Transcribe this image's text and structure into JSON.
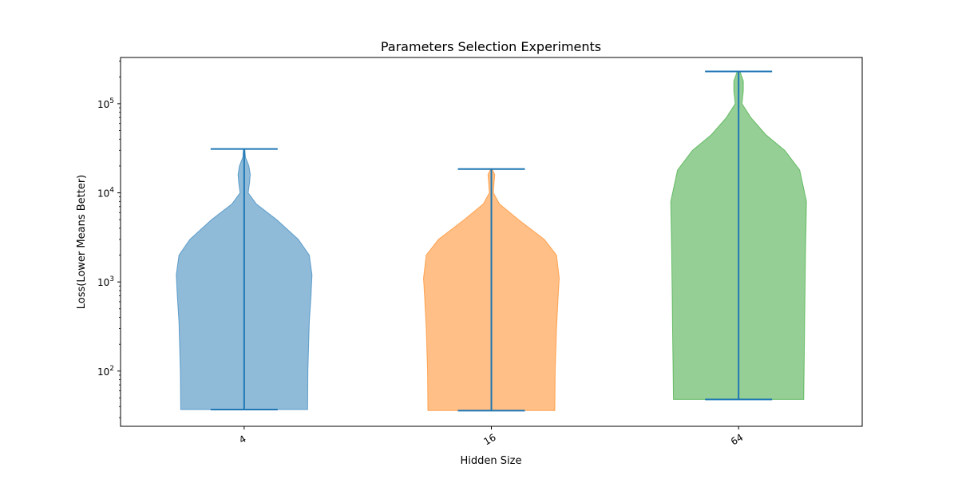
{
  "chart_data": {
    "type": "violin",
    "title": "Parameters Selection Experiments",
    "xlabel": "Hidden Size",
    "ylabel": "Loss(Lower Means Better)",
    "yscale": "log",
    "ylim": [
      24,
      330000
    ],
    "yticks": [
      {
        "value": 100,
        "base": "10",
        "exp": "2"
      },
      {
        "value": 1000,
        "base": "10",
        "exp": "3"
      },
      {
        "value": 10000,
        "base": "10",
        "exp": "4"
      },
      {
        "value": 100000,
        "base": "10",
        "exp": "5"
      }
    ],
    "categories": [
      "4",
      "16",
      "64"
    ],
    "series": [
      {
        "category": "4",
        "color": "#1f77b4",
        "min": 37,
        "max": 31000,
        "profile": [
          [
            37,
            0.935
          ],
          [
            100,
            0.94
          ],
          [
            350,
            0.96
          ],
          [
            700,
            0.985
          ],
          [
            1200,
            1.0
          ],
          [
            2000,
            0.96
          ],
          [
            3000,
            0.8
          ],
          [
            5000,
            0.48
          ],
          [
            7500,
            0.18
          ],
          [
            10000,
            0.06
          ],
          [
            13000,
            0.08
          ],
          [
            16000,
            0.09
          ],
          [
            20000,
            0.07
          ],
          [
            25000,
            0.02
          ],
          [
            31000,
            0.01
          ]
        ]
      },
      {
        "category": "16",
        "color": "#ff7f0e",
        "min": 36,
        "max": 18500,
        "profile": [
          [
            36,
            0.935
          ],
          [
            100,
            0.94
          ],
          [
            300,
            0.96
          ],
          [
            700,
            0.985
          ],
          [
            1100,
            1.0
          ],
          [
            2000,
            0.96
          ],
          [
            3000,
            0.78
          ],
          [
            5000,
            0.4
          ],
          [
            7500,
            0.12
          ],
          [
            10000,
            0.03
          ],
          [
            13000,
            0.04
          ],
          [
            16000,
            0.05
          ],
          [
            18500,
            0.01
          ]
        ]
      },
      {
        "category": "64",
        "color": "#2ca02c",
        "min": 48,
        "max": 230000,
        "profile": [
          [
            48,
            0.96
          ],
          [
            200,
            0.97
          ],
          [
            2000,
            0.985
          ],
          [
            8000,
            1.0
          ],
          [
            18000,
            0.9
          ],
          [
            30000,
            0.68
          ],
          [
            45000,
            0.4
          ],
          [
            70000,
            0.18
          ],
          [
            100000,
            0.05
          ],
          [
            140000,
            0.07
          ],
          [
            180000,
            0.07
          ],
          [
            230000,
            0.02
          ]
        ]
      }
    ]
  }
}
